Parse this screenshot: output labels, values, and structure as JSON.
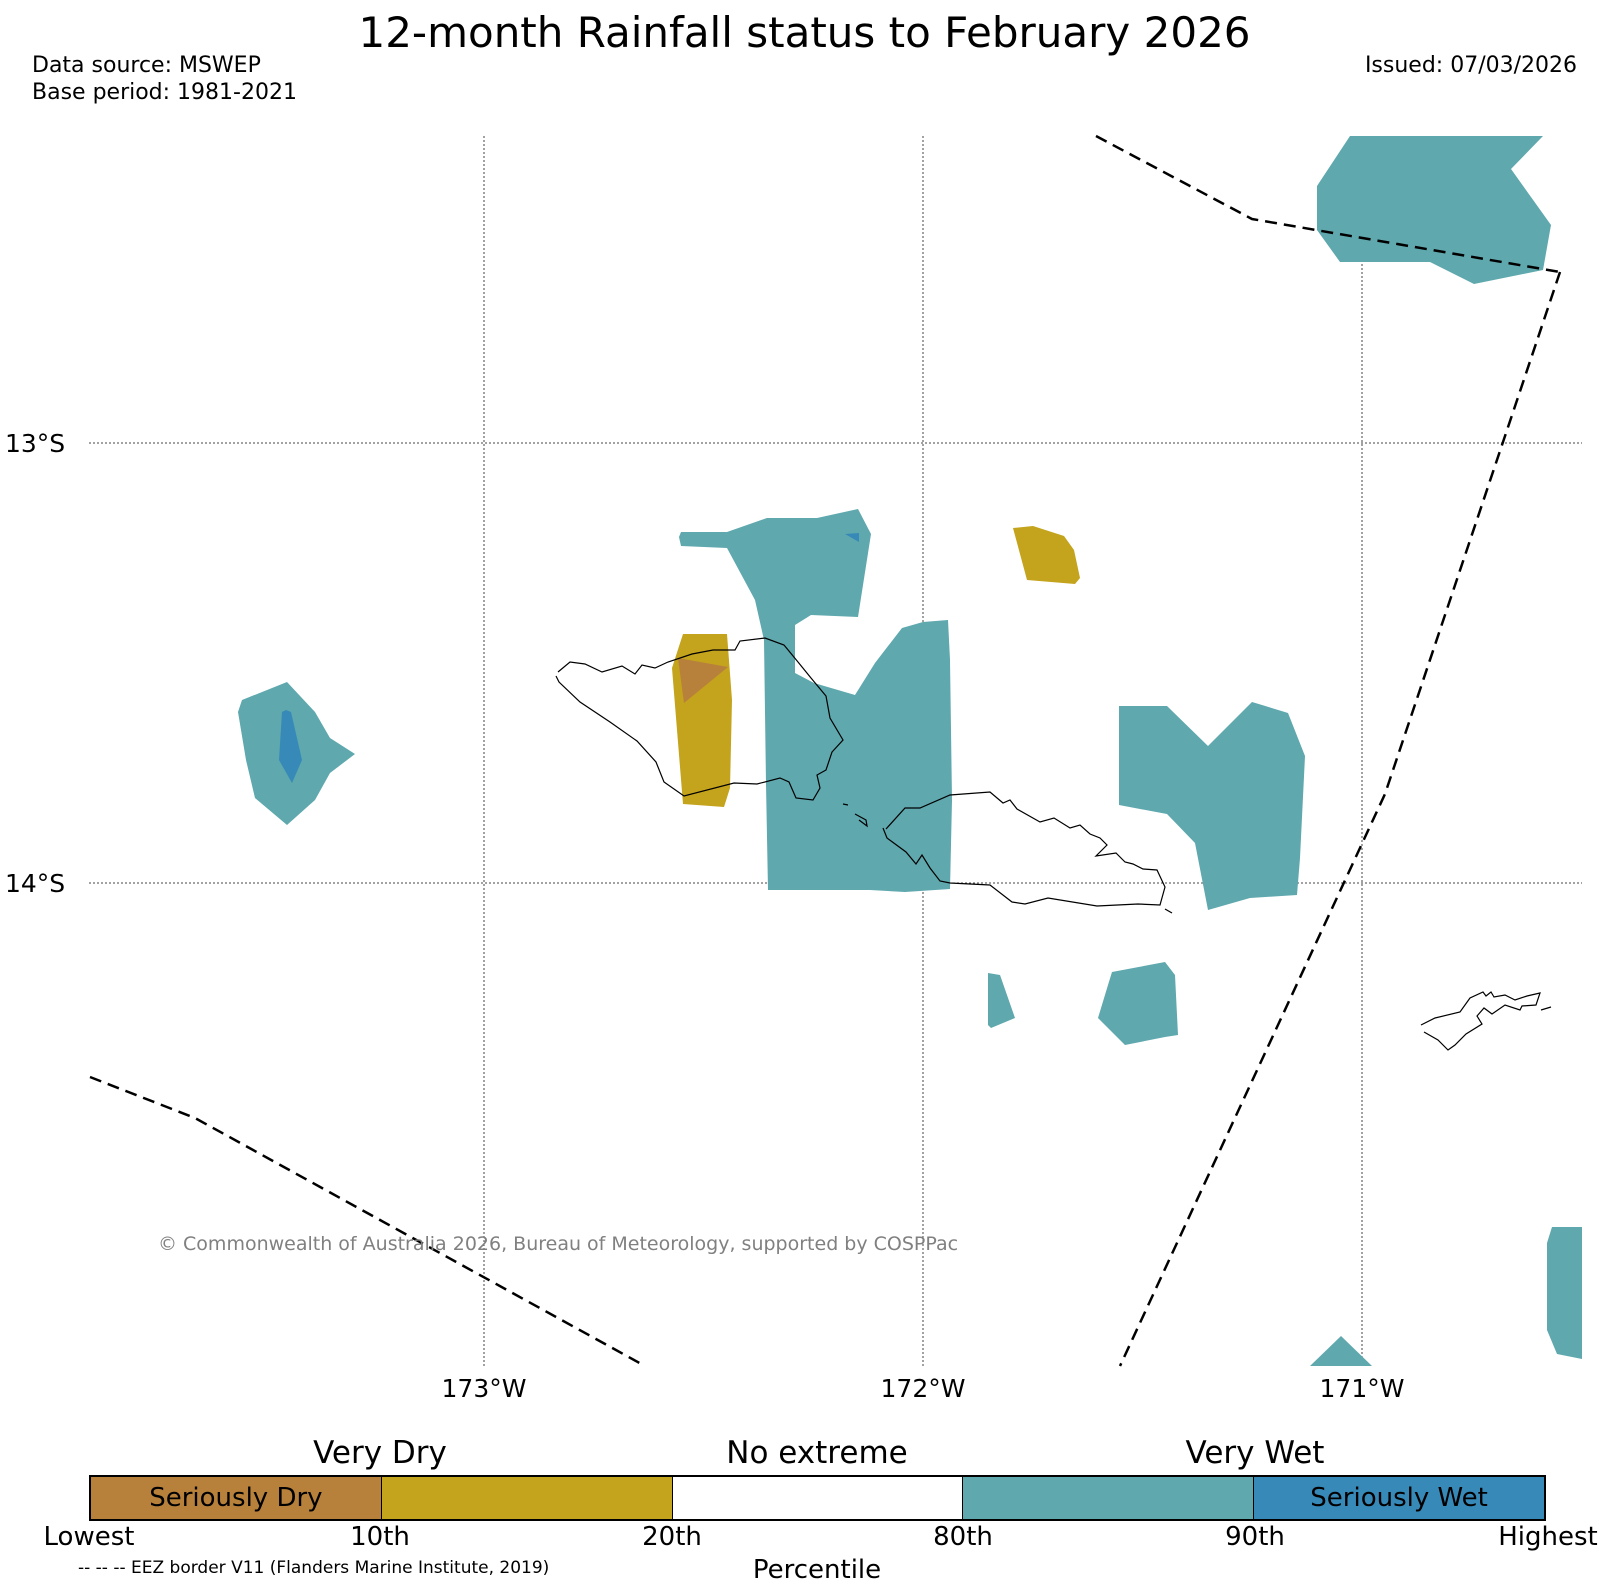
{
  "title": "12-month Rainfall status to February 2026",
  "data_source": "Data source: MSWEP",
  "base_period": "Base period: 1981-2021",
  "issued": "Issued: 07/03/2026",
  "map": {
    "lat_labels": [
      "13°S",
      "14°S"
    ],
    "lon_labels": [
      "173°W",
      "172°W",
      "171°W"
    ],
    "copyright": "© Commonwealth of Australia 2026, Bureau of Meteorology, supported by COSPPac",
    "eez_note": "-- -- -- EEZ border V11 (Flanders Marine Institute, 2019)"
  },
  "legend": {
    "categories": [
      "Very Dry",
      "No extreme",
      "Very Wet"
    ],
    "segments": [
      {
        "label": "Seriously Dry",
        "color": "#b8813b"
      },
      {
        "label": "",
        "color": "#c4a31d"
      },
      {
        "label": "",
        "color": "#ffffff"
      },
      {
        "label": "",
        "color": "#5ea8ae"
      },
      {
        "label": "Seriously Wet",
        "color": "#3789b8"
      }
    ],
    "ticks": [
      "Lowest",
      "10th",
      "20th",
      "80th",
      "90th",
      "Highest"
    ],
    "axis_title": "Percentile"
  },
  "colors": {
    "very_wet": "#5ea8ae",
    "seriously_wet": "#3789b8",
    "very_dry": "#c4a31d",
    "seriously_dry": "#b8813b"
  }
}
